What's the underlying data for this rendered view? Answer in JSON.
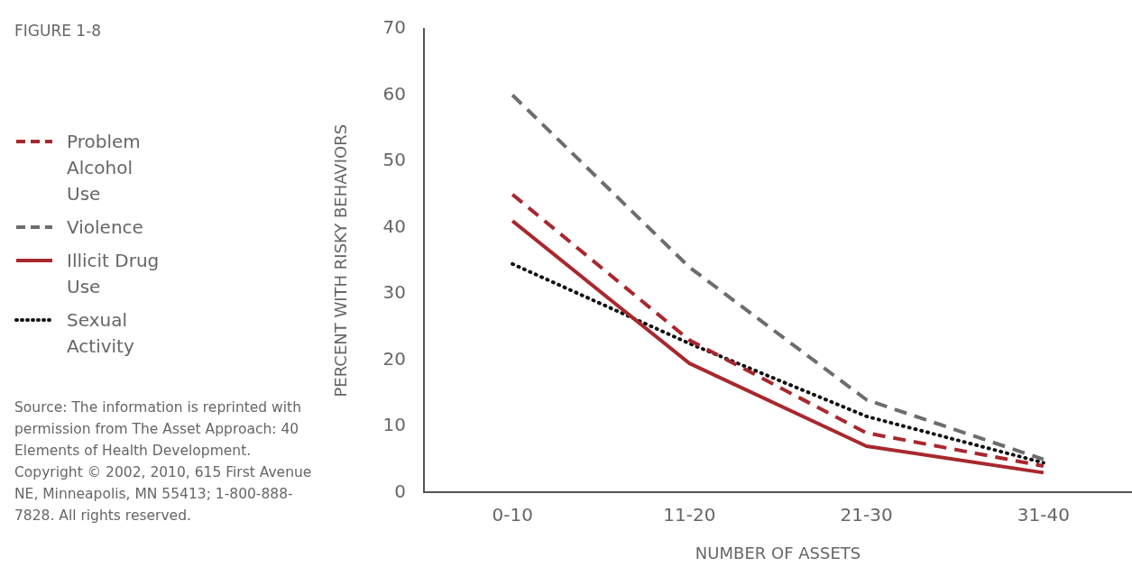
{
  "chart_data": {
    "type": "line",
    "title": "FIGURE 1-8",
    "xlabel": "NUMBER OF ASSETS",
    "ylabel": "PERCENT WITH RISKY BEHAVIORS",
    "categories": [
      "0-10",
      "11-20",
      "21-30",
      "31-40"
    ],
    "series": [
      {
        "name": "Problem Alcohol Use",
        "color": "#a8282e",
        "line_style": "dashed",
        "values": [
          45,
          23,
          9,
          4
        ]
      },
      {
        "name": "Violence",
        "color": "#6d6d6e",
        "line_style": "dashed",
        "values": [
          60,
          34,
          14,
          5
        ]
      },
      {
        "name": "Illicit Drug Use",
        "color": "#a8282e",
        "line_style": "solid",
        "values": [
          41,
          19.5,
          7,
          3
        ]
      },
      {
        "name": "Sexual Activity",
        "color": "#111111",
        "line_style": "dotted",
        "values": [
          34.5,
          22.5,
          11.5,
          4.5
        ]
      }
    ],
    "ylim": [
      0,
      70
    ],
    "yticks": [
      0,
      10,
      20,
      30,
      40,
      50,
      60,
      70
    ],
    "grid": false,
    "legend": "left",
    "marker": "none",
    "annotations": [
      "Source: The information is reprinted with permission from The Asset Approach: 40 Elements of Health Development. Copyright © 2002, 2010, 615 First Avenue NE, Minneapolis, MN 55413; 1-800-888-7828. All rights reserved."
    ]
  }
}
